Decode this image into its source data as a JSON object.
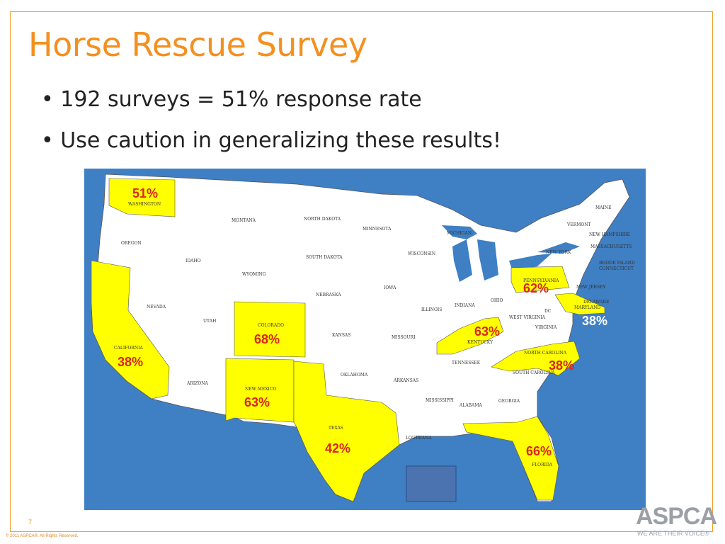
{
  "title": "Horse Rescue Survey",
  "bullets": [
    "192 surveys = 51% response rate",
    "Use caution in generalizing these results!"
  ],
  "map": {
    "background": "#3f7fc4",
    "highlight_color": "#ffff00",
    "percent_color": "#d9261c",
    "state_labels": {
      "washington": "WASHINGTON",
      "oregon": "OREGON",
      "california": "CALIFORNIA",
      "nevada": "NEVADA",
      "idaho": "IDAHO",
      "montana": "MONTANA",
      "wyoming": "WYOMING",
      "utah": "UTAH",
      "arizona": "ARIZONA",
      "colorado": "COLORADO",
      "new_mexico": "NEW MEXICO",
      "north_dakota": "NORTH DAKOTA",
      "south_dakota": "SOUTH DAKOTA",
      "nebraska": "NEBRASKA",
      "kansas": "KANSAS",
      "oklahoma": "OKLAHOMA",
      "texas": "TEXAS",
      "minnesota": "MINNESOTA",
      "iowa": "IOWA",
      "missouri": "MISSOURI",
      "arkansas": "ARKANSAS",
      "louisiana": "LOUISIANA",
      "wisconsin": "WISCONSIN",
      "michigan": "MICHIGAN",
      "illinois": "ILLINOIS",
      "indiana": "INDIANA",
      "ohio": "OHIO",
      "kentucky": "KENTUCKY",
      "tennessee": "TENNESSEE",
      "mississippi": "MISSISSIPPI",
      "alabama": "ALABAMA",
      "georgia": "GEORGIA",
      "florida": "FLORIDA",
      "south_carolina": "SOUTH CAROLINA",
      "north_carolina": "NORTH CAROLINA",
      "virginia": "VIRGINIA",
      "west_virginia": "WEST VIRGINIA",
      "pennsylvania": "PENNSYLVANIA",
      "new_york": "NEW YORK",
      "vermont": "VERMONT",
      "new_hampshire": "NEW HAMPSHIRE",
      "maine": "MAINE",
      "massachusetts": "MASSACHUSETTS",
      "rhode_island": "RHODE ISLAND",
      "connecticut": "CONNECTICUT",
      "new_jersey": "NEW JERSEY",
      "delaware": "DELAWARE",
      "maryland": "MARYLAND",
      "dc": "DC"
    },
    "percentages": {
      "washington": "51%",
      "california": "38%",
      "colorado": "68%",
      "new_mexico": "63%",
      "texas": "42%",
      "kentucky": "63%",
      "pennsylvania": "62%",
      "maryland": "38%",
      "north_carolina": "38%",
      "florida": "66%"
    }
  },
  "footer": {
    "page_number": "7",
    "copyright": "© 2011 ASPCA®. All Rights Reserved.",
    "logo_text": "ASPCA",
    "logo_tagline": "WE ARE THEIR VOICE®"
  }
}
